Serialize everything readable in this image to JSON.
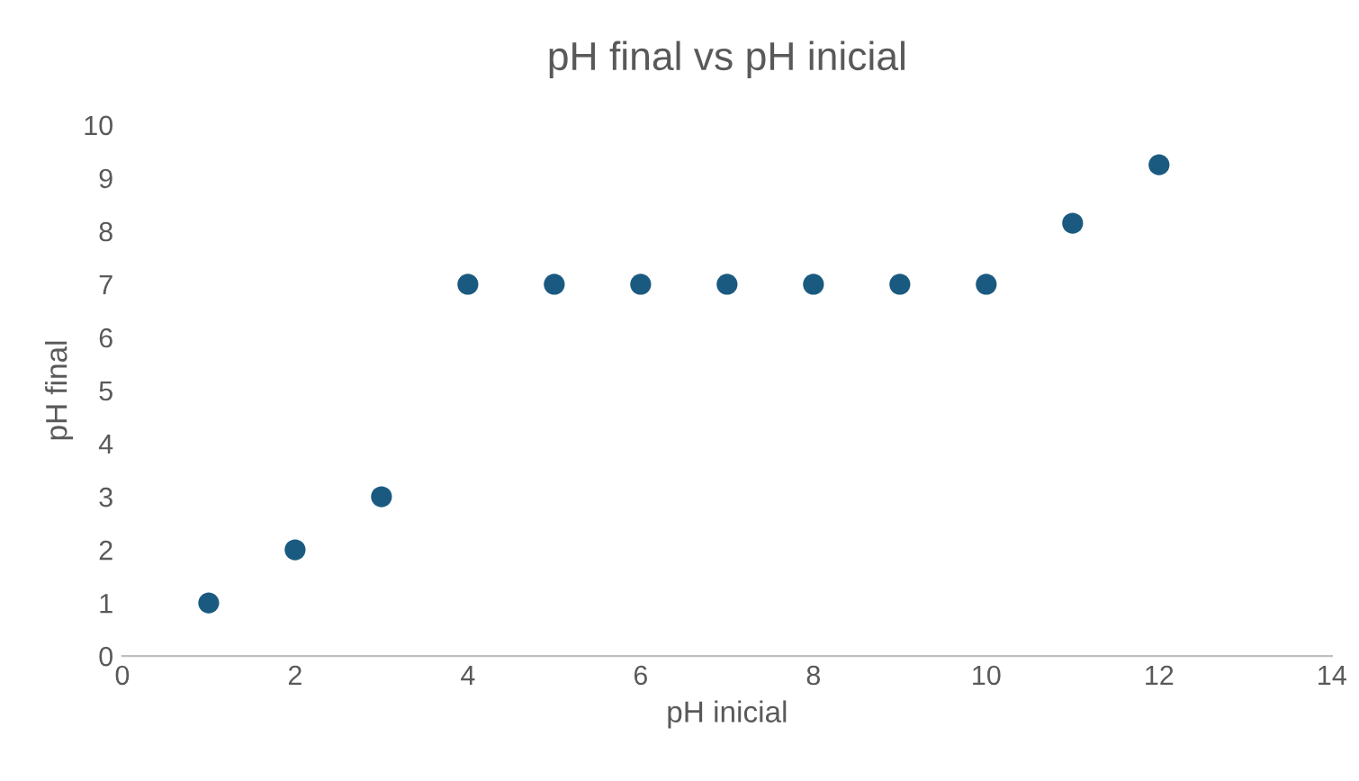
{
  "chart_data": {
    "type": "scatter",
    "title": "pH final vs pH inicial",
    "xlabel": "pH inicial",
    "ylabel": "pH final",
    "x": [
      1,
      2,
      3,
      4,
      5,
      6,
      7,
      8,
      9,
      10,
      11,
      12
    ],
    "series": [
      {
        "color": "#1b5a80",
        "values": [
          1,
          2,
          3,
          7,
          7,
          7,
          7,
          7,
          7,
          7,
          8.15,
          9.25
        ]
      }
    ],
    "xlim": [
      0,
      14
    ],
    "xticks": [
      0,
      2,
      4,
      6,
      8,
      10,
      12,
      14
    ],
    "ylim": [
      0,
      10
    ],
    "yticks": [
      0,
      1,
      2,
      3,
      4,
      5,
      6,
      7,
      8,
      9,
      10
    ],
    "grid": false,
    "legend": false,
    "marker": "circle"
  }
}
